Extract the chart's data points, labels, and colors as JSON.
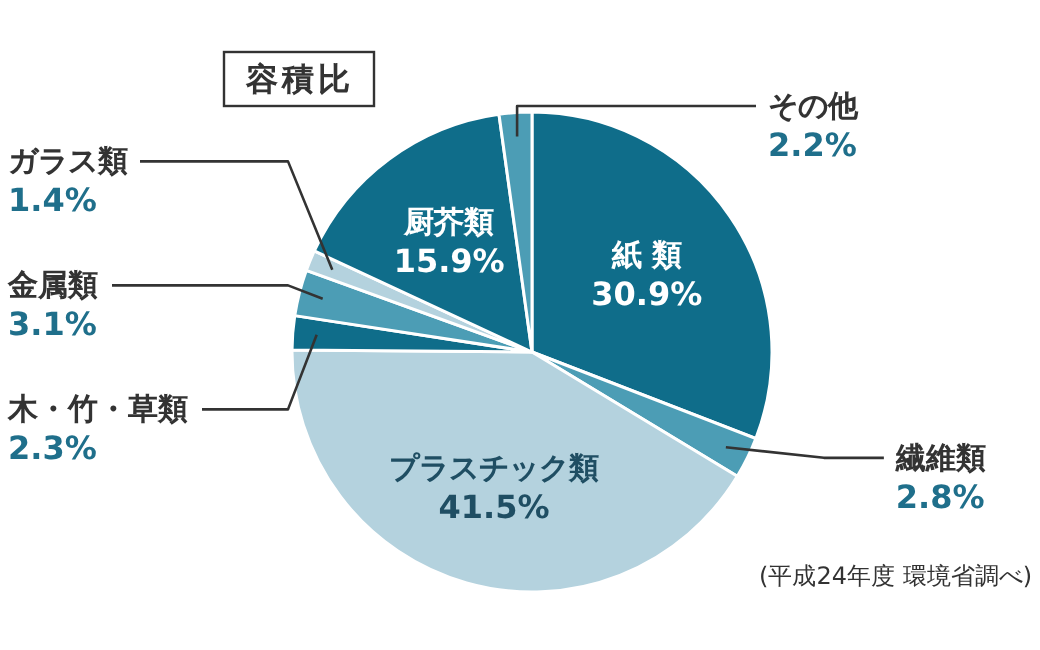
{
  "chart_data": {
    "type": "pie",
    "title": "容積比",
    "categories": [
      "紙 類",
      "繊維類",
      "プラスチック類",
      "木・竹・草類",
      "金属類",
      "ガラス類",
      "厨芥類",
      "その他"
    ],
    "values": [
      30.9,
      2.8,
      41.5,
      2.3,
      3.1,
      1.4,
      15.9,
      2.2
    ],
    "colors": [
      "#0f6d8a",
      "#4c9db5",
      "#b4d2de",
      "#0f6d8a",
      "#4c9db5",
      "#b4d2de",
      "#0f6d8a",
      "#4c9db5"
    ],
    "value_labels": [
      "30.9%",
      "2.8%",
      "41.5%",
      "2.3%",
      "3.1%",
      "1.4%",
      "15.9%",
      "2.2%"
    ],
    "annotations": [
      "(平成24年度 環境省調べ)"
    ]
  }
}
